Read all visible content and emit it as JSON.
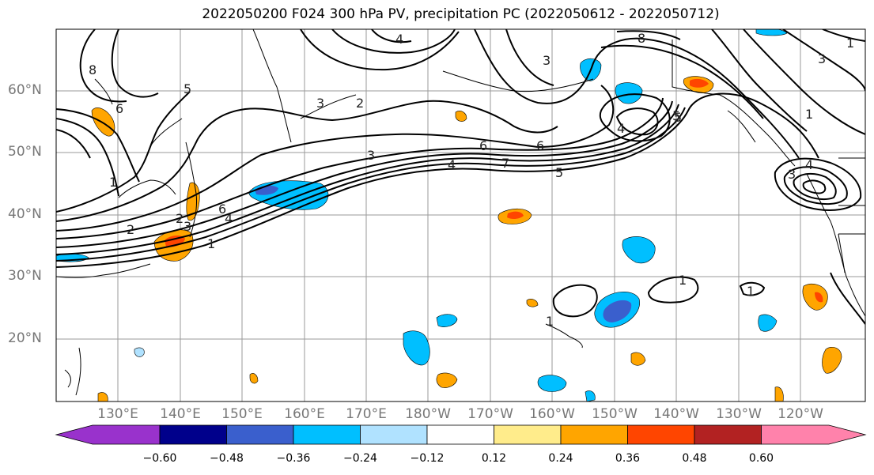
{
  "title": "2022050200 F024 300 hPa PV, precipitation PC (2022050612 - 2022050712)",
  "lat_labels": [
    "60°N",
    "50°N",
    "40°N",
    "30°N",
    "20°N"
  ],
  "lon_labels": [
    "130°E",
    "140°E",
    "150°E",
    "160°E",
    "170°E",
    "180°W",
    "170°W",
    "160°W",
    "150°W",
    "140°W",
    "130°W",
    "120°W"
  ],
  "colorbar": {
    "ticks": [
      "−0.60",
      "−0.48",
      "−0.36",
      "−0.24",
      "−0.12",
      "0.12",
      "0.24",
      "0.36",
      "0.48",
      "0.60"
    ],
    "colors": [
      "#9932cc",
      "#00008b",
      "#3a5fcd",
      "#00bfff",
      "#b0e2ff",
      "#ffffff",
      "#ffec8b",
      "#ffa500",
      "#ff4500",
      "#b22222",
      "#ff82ab"
    ]
  },
  "contour_labels": [
    "8",
    "6",
    "5",
    "4",
    "2",
    "3",
    "4",
    "6",
    "6",
    "7",
    "5",
    "4",
    "5",
    "3",
    "1",
    "1",
    "3",
    "3",
    "2",
    "1",
    "8",
    "6",
    "4",
    "1",
    "1",
    "1",
    "1",
    "2",
    "3",
    "4",
    "5",
    "3"
  ]
}
